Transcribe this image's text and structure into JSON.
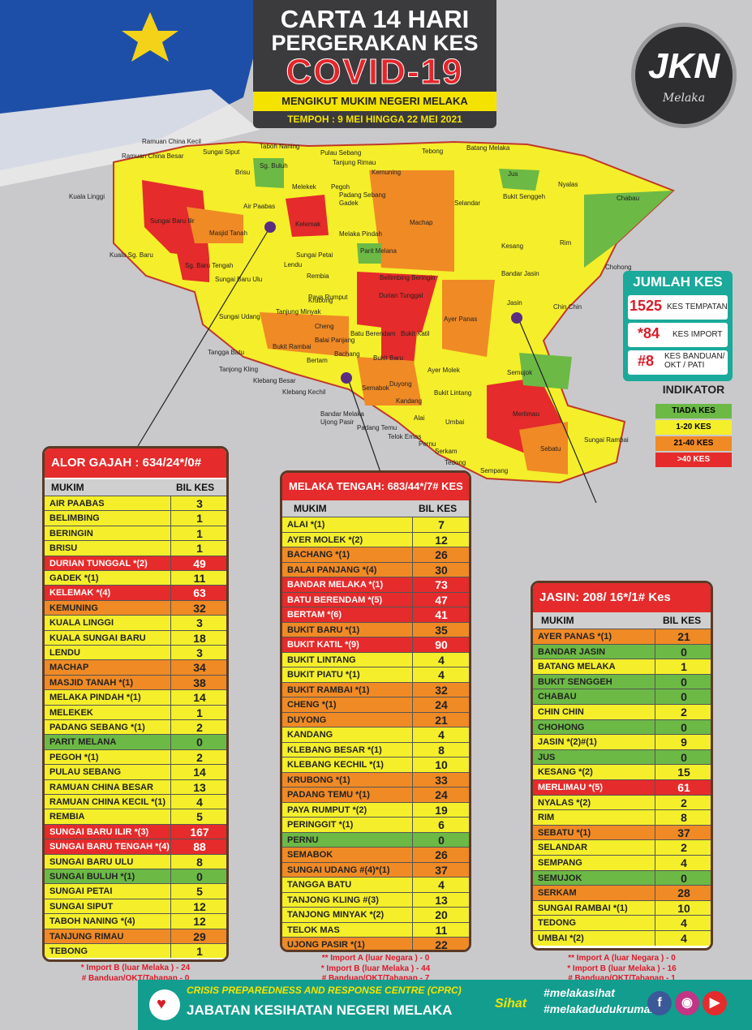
{
  "header": {
    "line1": "CARTA 14 HARI",
    "line2": "PERGERAKAN KES",
    "line3": "COVID-19",
    "line4": "MENGIKUT MUKIM NEGERI MELAKA",
    "line5": "TEMPOH : 9 MEI HINGGA 22 MEI  2021"
  },
  "logo": {
    "text": "JKN",
    "sub": "Melaka"
  },
  "summary": {
    "title": "JUMLAH KES",
    "items": [
      {
        "num": "1525",
        "label": "KES TEMPATAN"
      },
      {
        "num": "*84",
        "label": "KES IMPORT"
      },
      {
        "num": "#8",
        "label": "KES BANDUAN/ OKT / PATI"
      }
    ]
  },
  "indicator": {
    "title": "INDIKATOR",
    "items": [
      {
        "label": "TIADA KES",
        "color": "#6cb946"
      },
      {
        "label": "1-20  KES",
        "color": "#f4ef2a"
      },
      {
        "label": "21-40  KES",
        "color": "#f08a25"
      },
      {
        "label": ">40    KES",
        "color": "#e52b2b"
      }
    ]
  },
  "colors": {
    "green": "#6cb946",
    "yellow": "#f4ef2a",
    "orange": "#f08a25",
    "red": "#e52b2b"
  },
  "map_labels": [
    "Ramuan China Kecil",
    "Ramuan China Besar",
    "Taboh Naning",
    "Pulau Sebang",
    "Tebong",
    "Batang Melaka",
    "Sungai Siput",
    "Brisu",
    "Sg. Buluh",
    "Tanjung Rimau",
    "Kemuning",
    "Jus",
    "Nyalas",
    "Kuala Linggi",
    "Melekek",
    "Pegoh",
    "Padang Sebang",
    "Gadek",
    "Selandar",
    "Bukit Senggeh",
    "Chabau",
    "Air Paabas",
    "Sungai Baru Ilir",
    "Kelemak",
    "Machap",
    "Masjid Tanah",
    "Melaka Pindah",
    "Kuala Sg. Baru",
    "Kesang",
    "Rim",
    "Lendu",
    "Sungai Petai",
    "Parit Melana",
    "Sg. Baru Tengah",
    "Chohong",
    "Sungai Baru Ulu",
    "Rembia",
    "Bellimbing Beringin",
    "Bandar Jasin",
    "Durian Tunggal",
    "Krubong",
    "Paya Rumput",
    "Tanjung Minyak",
    "Jasin",
    "Chin Chin",
    "Sungai Udang",
    "Cheng",
    "Ayer Panas",
    "Batu Berendam",
    "Bukit Katil",
    "Balai Panjang",
    "Bukit Rambai",
    "Tangga Batu",
    "Bachang",
    "Bertam",
    "Semujok",
    "Tanjong Kling",
    "Klebang Besar",
    "Bukit Baru",
    "Ayer Molek",
    "Duyong",
    "Klebang Kechil",
    "Semabok",
    "Bukit Lintang",
    "Merlimau",
    "Bandar Melaka",
    "Ujong Pasir",
    "Kandang",
    "Padang Temu",
    "Alai",
    "Umbai",
    "Telok Emas",
    "Pernu",
    "Sebatu",
    "Sungai Rambai",
    "Serkam",
    "Tedong",
    "Sempang"
  ],
  "tables": {
    "alor_gajah": {
      "title": "ALOR GAJAH : 634/24*/0# KES",
      "col_mukim": "MUKIM",
      "col_bil": "BIL KES",
      "rows": [
        {
          "m": "AIR PAABAS",
          "v": "3",
          "c": "yellow"
        },
        {
          "m": "BELIMBING",
          "v": "1",
          "c": "yellow"
        },
        {
          "m": "BERINGIN",
          "v": "1",
          "c": "yellow"
        },
        {
          "m": "BRISU",
          "v": "1",
          "c": "yellow"
        },
        {
          "m": "DURIAN TUNGGAL *(2)",
          "v": "49",
          "c": "red"
        },
        {
          "m": "GADEK *(1)",
          "v": "11",
          "c": "yellow"
        },
        {
          "m": "KELEMAK *(4)",
          "v": "63",
          "c": "red"
        },
        {
          "m": "KEMUNING",
          "v": "32",
          "c": "orange"
        },
        {
          "m": "KUALA LINGGI",
          "v": "3",
          "c": "yellow"
        },
        {
          "m": "KUALA SUNGAI BARU",
          "v": "18",
          "c": "yellow"
        },
        {
          "m": "LENDU",
          "v": "3",
          "c": "yellow"
        },
        {
          "m": "MACHAP",
          "v": "34",
          "c": "orange"
        },
        {
          "m": "MASJID TANAH *(1)",
          "v": "38",
          "c": "orange"
        },
        {
          "m": "MELAKA PINDAH *(1)",
          "v": "14",
          "c": "yellow"
        },
        {
          "m": "MELEKEK",
          "v": "1",
          "c": "yellow"
        },
        {
          "m": "PADANG SEBANG *(1)",
          "v": "2",
          "c": "yellow"
        },
        {
          "m": "PARIT MELANA",
          "v": "0",
          "c": "green"
        },
        {
          "m": "PEGOH *(1)",
          "v": "2",
          "c": "yellow"
        },
        {
          "m": "PULAU SEBANG",
          "v": "14",
          "c": "yellow"
        },
        {
          "m": "RAMUAN  CHINA BESAR",
          "v": "13",
          "c": "yellow"
        },
        {
          "m": "RAMUAN  CHINA KECIL *(1)",
          "v": "4",
          "c": "yellow"
        },
        {
          "m": "REMBIA",
          "v": "5",
          "c": "yellow"
        },
        {
          "m": "SUNGAI BARU ILIR *(3)",
          "v": "167",
          "c": "red"
        },
        {
          "m": "SUNGAI BARU TENGAH *(4)",
          "v": "88",
          "c": "red"
        },
        {
          "m": "SUNGAI BARU ULU",
          "v": "8",
          "c": "yellow"
        },
        {
          "m": "SUNGAI BULUH *(1)",
          "v": "0",
          "c": "green"
        },
        {
          "m": "SUNGAI PETAI",
          "v": "5",
          "c": "yellow"
        },
        {
          "m": "SUNGAI SIPUT",
          "v": "12",
          "c": "yellow"
        },
        {
          "m": "TABOH NANING *(4)",
          "v": "12",
          "c": "yellow"
        },
        {
          "m": "TANJUNG  RIMAU",
          "v": "29",
          "c": "orange"
        },
        {
          "m": "TEBONG",
          "v": "1",
          "c": "yellow"
        }
      ],
      "foot1": "* Import B (luar Melaka ) - 24",
      "foot2": "# Banduan/OKT/Tahanan - 0"
    },
    "melaka_tengah": {
      "title": "MELAKA TENGAH: 683/44*/7# KES",
      "col_mukim": "MUKIM",
      "col_bil": "BIL KES",
      "rows": [
        {
          "m": "ALAI *(1)",
          "v": "7",
          "c": "yellow"
        },
        {
          "m": "AYER MOLEK *(2)",
          "v": "12",
          "c": "yellow"
        },
        {
          "m": "BACHANG  *(1)",
          "v": "26",
          "c": "orange"
        },
        {
          "m": "BALAI PANJANG *(4)",
          "v": "30",
          "c": "orange"
        },
        {
          "m": "BANDAR MELAKA *(1)",
          "v": "73",
          "c": "red"
        },
        {
          "m": "BATU BERENDAM *(5)",
          "v": "47",
          "c": "red"
        },
        {
          "m": "BERTAM *(6)",
          "v": "41",
          "c": "red"
        },
        {
          "m": "BUKIT BARU *(1)",
          "v": "35",
          "c": "orange"
        },
        {
          "m": "BUKIT KATIL *(9)",
          "v": "90",
          "c": "red"
        },
        {
          "m": "BUKIT LINTANG",
          "v": "4",
          "c": "yellow"
        },
        {
          "m": "BUKIT PIATU *(1)",
          "v": "4",
          "c": "yellow"
        },
        {
          "m": "BUKIT RAMBAI *(1)",
          "v": "32",
          "c": "orange"
        },
        {
          "m": "CHENG *(1)",
          "v": "24",
          "c": "orange"
        },
        {
          "m": "DUYONG",
          "v": "21",
          "c": "orange"
        },
        {
          "m": "KANDANG",
          "v": "4",
          "c": "yellow"
        },
        {
          "m": "KLEBANG  BESAR *(1)",
          "v": "8",
          "c": "yellow"
        },
        {
          "m": "KLEBANG  KECHIL *(1)",
          "v": "10",
          "c": "yellow"
        },
        {
          "m": "KRUBONG *(1)",
          "v": "33",
          "c": "orange"
        },
        {
          "m": "PADANG TEMU *(1)",
          "v": "24",
          "c": "orange"
        },
        {
          "m": "PAYA RUMPUT *(2)",
          "v": "19",
          "c": "yellow"
        },
        {
          "m": "PERINGGIT *(1)",
          "v": "6",
          "c": "yellow"
        },
        {
          "m": "PERNU",
          "v": "0",
          "c": "green"
        },
        {
          "m": "SEMABOK",
          "v": "26",
          "c": "orange"
        },
        {
          "m": "SUNGAI UDANG #(4)*(1)",
          "v": "37",
          "c": "orange"
        },
        {
          "m": "TANGGA BATU",
          "v": "4",
          "c": "yellow"
        },
        {
          "m": "TANJONG KLING #(3)",
          "v": "13",
          "c": "yellow"
        },
        {
          "m": "TANJONG  MINYAK *(2)",
          "v": "20",
          "c": "yellow"
        },
        {
          "m": "TELOK MAS",
          "v": "11",
          "c": "yellow"
        },
        {
          "m": "UJONG PASIR *(1)",
          "v": "22",
          "c": "orange"
        }
      ],
      "foot1": "** Import A (luar Negara ) - 0",
      "foot2": "* Import B (luar Melaka ) - 44",
      "foot3": "# Banduan/OKT/Tahanan - 7"
    },
    "jasin": {
      "title": "JASIN:  208/ 16*/1# Kes",
      "col_mukim": "MUKIM",
      "col_bil": "BIL KES",
      "rows": [
        {
          "m": "AYER PANAS *(1)",
          "v": "21",
          "c": "orange"
        },
        {
          "m": "BANDAR JASIN",
          "v": "0",
          "c": "green"
        },
        {
          "m": "BATANG MELAKA",
          "v": "1",
          "c": "yellow"
        },
        {
          "m": "BUKIT  SENGGEH",
          "v": "0",
          "c": "green"
        },
        {
          "m": "CHABAU",
          "v": "0",
          "c": "green"
        },
        {
          "m": "CHIN CHIN",
          "v": "2",
          "c": "yellow"
        },
        {
          "m": "CHOHONG",
          "v": "0",
          "c": "green"
        },
        {
          "m": "JASIN *(2)#(1)",
          "v": "9",
          "c": "yellow"
        },
        {
          "m": "JUS",
          "v": "0",
          "c": "green"
        },
        {
          "m": "KESANG *(2)",
          "v": "15",
          "c": "yellow"
        },
        {
          "m": "MERLIMAU *(5)",
          "v": "61",
          "c": "red"
        },
        {
          "m": "NYALAS *(2)",
          "v": "2",
          "c": "yellow"
        },
        {
          "m": "RIM",
          "v": "8",
          "c": "yellow"
        },
        {
          "m": "SEBATU *(1)",
          "v": "37",
          "c": "orange"
        },
        {
          "m": "SELANDAR",
          "v": "2",
          "c": "yellow"
        },
        {
          "m": "SEMPANG",
          "v": "4",
          "c": "yellow"
        },
        {
          "m": "SEMUJOK",
          "v": "0",
          "c": "green"
        },
        {
          "m": "SERKAM",
          "v": "28",
          "c": "orange"
        },
        {
          "m": "SUNGAI RAMBAI *(1)",
          "v": "10",
          "c": "yellow"
        },
        {
          "m": "TEDONG",
          "v": "4",
          "c": "yellow"
        },
        {
          "m": "UMBAI *(2)",
          "v": "4",
          "c": "yellow"
        }
      ],
      "foot1": "** Import A (luar Negara ) - 0",
      "foot2": "* Import B (luar Melaka ) - 16",
      "foot3": "# Banduan/OKT/Tahanan - 1"
    }
  },
  "bottom": {
    "cprc": "CRISIS PREPAREDNESS AND RESPONSE CENTRE (CPRC)",
    "jkn": "JABATAN KESIHATAN NEGERI MELAKA",
    "tag1": "#melakasihat",
    "tag2": "#melakadudukrumah",
    "social": [
      "facebook-icon",
      "instagram-icon",
      "youtube-icon"
    ]
  }
}
